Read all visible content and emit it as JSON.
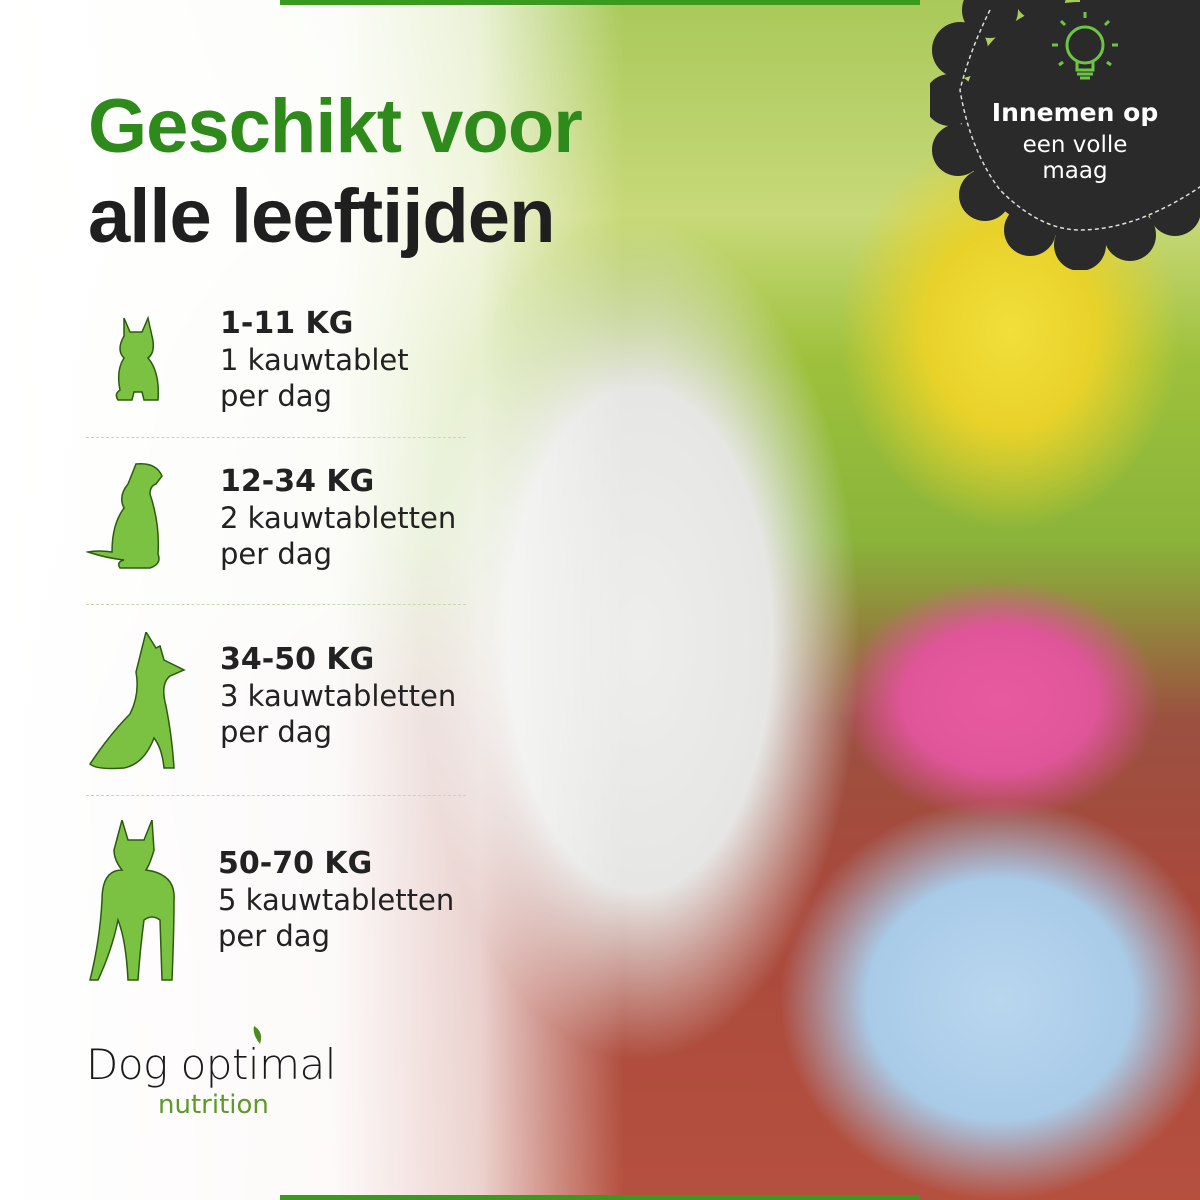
{
  "headline": {
    "line1": "Geschikt voor",
    "line2": "alle leeftijden"
  },
  "badge": {
    "icon": "lightbulb-icon",
    "line1": "Innemen op",
    "line2": "een volle",
    "line3": "maag"
  },
  "dosage": [
    {
      "weight": "1-11 KG",
      "amount": "1 kauwtablet",
      "period": "per dag",
      "icon": "small-dog-icon"
    },
    {
      "weight": "12-34 KG",
      "amount": "2 kauwtabletten",
      "period": "per dag",
      "icon": "medium-dog-icon"
    },
    {
      "weight": "34-50 KG",
      "amount": "3 kauwtabletten",
      "period": "per dag",
      "icon": "large-dog-icon"
    },
    {
      "weight": "50-70 KG",
      "amount": "5 kauwtabletten",
      "period": "per dag",
      "icon": "giant-dog-icon"
    }
  ],
  "logo": {
    "name": "Dog optimal",
    "sub": "nutrition"
  },
  "colors": {
    "accent": "#2f8a1c",
    "icon": "#7cc242",
    "badge": "#2a2a2a"
  }
}
